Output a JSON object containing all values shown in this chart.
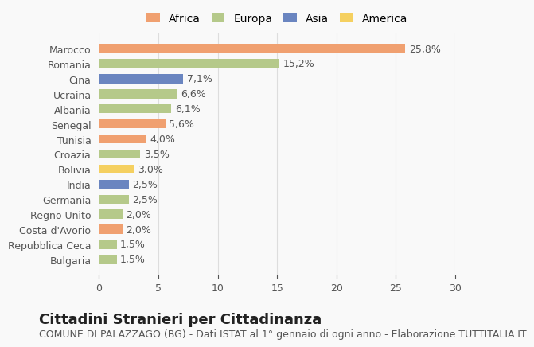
{
  "countries": [
    "Bulgaria",
    "Repubblica Ceca",
    "Costa d'Avorio",
    "Regno Unito",
    "Germania",
    "India",
    "Bolivia",
    "Croazia",
    "Tunisia",
    "Senegal",
    "Albania",
    "Ucraina",
    "Cina",
    "Romania",
    "Marocco"
  ],
  "values": [
    1.5,
    1.5,
    2.0,
    2.0,
    2.5,
    2.5,
    3.0,
    3.5,
    4.0,
    5.6,
    6.1,
    6.6,
    7.1,
    15.2,
    25.8
  ],
  "labels": [
    "1,5%",
    "1,5%",
    "2,0%",
    "2,0%",
    "2,5%",
    "2,5%",
    "3,0%",
    "3,5%",
    "4,0%",
    "5,6%",
    "6,1%",
    "6,6%",
    "7,1%",
    "15,2%",
    "25,8%"
  ],
  "colors": [
    "#b5c98a",
    "#b5c98a",
    "#f0a070",
    "#b5c98a",
    "#b5c98a",
    "#6a85c0",
    "#f5d060",
    "#b5c98a",
    "#f0a070",
    "#f0a070",
    "#b5c98a",
    "#b5c98a",
    "#6a85c0",
    "#b5c98a",
    "#f0a070"
  ],
  "legend": [
    {
      "label": "Africa",
      "color": "#f0a070"
    },
    {
      "label": "Europa",
      "color": "#b5c98a"
    },
    {
      "label": "Asia",
      "color": "#6a85c0"
    },
    {
      "label": "America",
      "color": "#f5d060"
    }
  ],
  "title": "Cittadini Stranieri per Cittadinanza",
  "subtitle": "COMUNE DI PALAZZAGO (BG) - Dati ISTAT al 1° gennaio di ogni anno - Elaborazione TUTTITALIA.IT",
  "xlim": [
    0,
    30
  ],
  "xticks": [
    0,
    5,
    10,
    15,
    20,
    25,
    30
  ],
  "background_color": "#f9f9f9",
  "grid_color": "#dddddd",
  "bar_height": 0.6,
  "title_fontsize": 13,
  "subtitle_fontsize": 9,
  "label_fontsize": 9,
  "tick_fontsize": 9,
  "legend_fontsize": 10
}
